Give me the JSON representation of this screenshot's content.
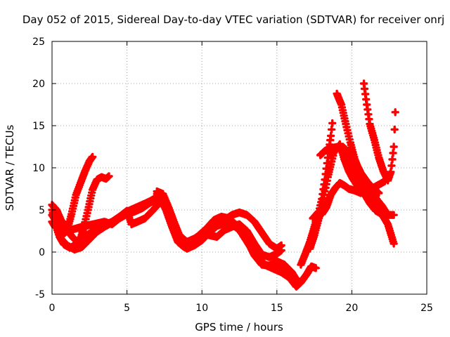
{
  "chart_data": {
    "type": "scatter",
    "title": "Day 052 of 2015, Sidereal Day-to-day VTEC variation (SDTVAR) for receiver onrj",
    "xlabel": "GPS time / hours",
    "ylabel": "SDTVAR / TECUs",
    "xlim": [
      0,
      25
    ],
    "ylim": [
      -5,
      25
    ],
    "x_ticks": [
      "0",
      "5",
      "10",
      "15",
      "20",
      "25"
    ],
    "y_ticks": [
      "-5",
      "0",
      "5",
      "10",
      "15",
      "20",
      "25"
    ],
    "grid": true,
    "marker": "+",
    "color": "#ff0000",
    "series": [
      {
        "points": [
          [
            0.0,
            5.6
          ],
          [
            0.3,
            5.0
          ],
          [
            0.6,
            3.8
          ],
          [
            1.0,
            2.6
          ],
          [
            1.4,
            1.7
          ],
          [
            1.8,
            1.0
          ],
          [
            2.1,
            2.8
          ],
          [
            2.4,
            5.0
          ],
          [
            2.7,
            7.4
          ],
          [
            3.0,
            8.6
          ],
          [
            3.3,
            8.9
          ],
          [
            3.6,
            8.7
          ],
          [
            3.8,
            9.0
          ]
        ]
      },
      {
        "points": [
          [
            0.0,
            3.6
          ],
          [
            0.2,
            3.0
          ],
          [
            0.5,
            2.7
          ],
          [
            0.8,
            2.2
          ],
          [
            1.0,
            2.5
          ],
          [
            1.3,
            4.5
          ],
          [
            1.6,
            6.8
          ],
          [
            1.9,
            8.2
          ],
          [
            2.2,
            9.6
          ],
          [
            2.5,
            10.8
          ],
          [
            2.7,
            11.3
          ]
        ]
      },
      {
        "points": [
          [
            0.0,
            5.0
          ],
          [
            0.3,
            3.0
          ],
          [
            0.6,
            1.6
          ],
          [
            1.0,
            0.8
          ],
          [
            1.5,
            0.3
          ],
          [
            2.0,
            0.6
          ],
          [
            2.5,
            1.5
          ],
          [
            3.0,
            2.4
          ],
          [
            3.5,
            3.0
          ],
          [
            4.0,
            3.5
          ],
          [
            4.5,
            4.2
          ],
          [
            5.0,
            4.8
          ],
          [
            5.5,
            5.2
          ],
          [
            6.0,
            5.6
          ],
          [
            6.5,
            6.0
          ],
          [
            7.0,
            6.5
          ],
          [
            7.3,
            6.6
          ]
        ]
      },
      {
        "points": [
          [
            0.0,
            4.4
          ],
          [
            0.4,
            3.3
          ],
          [
            0.8,
            2.8
          ],
          [
            1.2,
            2.6
          ],
          [
            1.6,
            2.8
          ],
          [
            2.0,
            3.0
          ],
          [
            2.5,
            3.2
          ],
          [
            3.0,
            3.4
          ],
          [
            3.5,
            3.6
          ],
          [
            4.0,
            3.3
          ],
          [
            4.5,
            4.0
          ],
          [
            5.0,
            4.5
          ],
          [
            5.5,
            4.8
          ],
          [
            6.0,
            5.2
          ],
          [
            6.5,
            5.8
          ],
          [
            7.0,
            6.3
          ],
          [
            7.2,
            6.7
          ]
        ]
      },
      {
        "points": [
          [
            0.2,
            3.4
          ],
          [
            0.5,
            1.8
          ],
          [
            0.8,
            0.9
          ],
          [
            1.2,
            0.5
          ],
          [
            1.6,
            0.9
          ],
          [
            2.0,
            1.6
          ],
          [
            2.5,
            2.2
          ],
          [
            3.0,
            2.7
          ],
          [
            3.5,
            3.2
          ],
          [
            4.0,
            3.6
          ],
          [
            4.5,
            4.2
          ],
          [
            5.0,
            4.9
          ],
          [
            5.3,
            3.3
          ],
          [
            5.7,
            3.6
          ],
          [
            6.2,
            4.0
          ],
          [
            6.7,
            4.9
          ],
          [
            7.0,
            5.5
          ],
          [
            7.3,
            6.0
          ]
        ]
      },
      {
        "points": [
          [
            7.0,
            7.2
          ],
          [
            7.4,
            6.9
          ],
          [
            7.8,
            5.2
          ],
          [
            8.2,
            3.3
          ],
          [
            8.6,
            1.5
          ],
          [
            9.0,
            0.9
          ],
          [
            9.5,
            1.3
          ],
          [
            10.0,
            1.8
          ],
          [
            10.5,
            2.6
          ],
          [
            11.0,
            3.2
          ],
          [
            11.5,
            3.8
          ],
          [
            12.0,
            4.4
          ],
          [
            12.5,
            4.7
          ],
          [
            13.0,
            4.4
          ],
          [
            13.5,
            3.6
          ],
          [
            14.0,
            2.3
          ],
          [
            14.5,
            1.0
          ],
          [
            15.0,
            0.4
          ],
          [
            15.3,
            0.8
          ]
        ]
      },
      {
        "points": [
          [
            7.0,
            6.9
          ],
          [
            7.4,
            6.5
          ],
          [
            7.8,
            4.7
          ],
          [
            8.2,
            2.5
          ],
          [
            8.6,
            0.9
          ],
          [
            9.0,
            0.4
          ],
          [
            9.5,
            0.8
          ],
          [
            10.0,
            1.4
          ],
          [
            10.5,
            2.3
          ],
          [
            11.0,
            3.1
          ],
          [
            11.5,
            3.4
          ],
          [
            12.0,
            3.3
          ],
          [
            12.5,
            2.6
          ],
          [
            13.0,
            1.4
          ],
          [
            13.5,
            -0.4
          ],
          [
            14.0,
            -1.5
          ],
          [
            14.5,
            -1.6
          ],
          [
            15.0,
            -1.1
          ],
          [
            15.5,
            -1.5
          ],
          [
            16.0,
            -2.4
          ],
          [
            16.3,
            -3.3
          ]
        ]
      },
      {
        "points": [
          [
            7.2,
            6.4
          ],
          [
            7.6,
            5.0
          ],
          [
            8.0,
            3.0
          ],
          [
            8.4,
            1.2
          ],
          [
            8.8,
            0.6
          ],
          [
            9.3,
            1.2
          ],
          [
            9.8,
            2.0
          ],
          [
            10.3,
            2.8
          ],
          [
            10.8,
            3.8
          ],
          [
            11.3,
            4.2
          ],
          [
            11.8,
            4.0
          ],
          [
            12.3,
            3.2
          ],
          [
            12.8,
            1.8
          ],
          [
            13.3,
            0.4
          ],
          [
            13.8,
            -0.8
          ],
          [
            14.3,
            -1.6
          ],
          [
            14.8,
            -2.0
          ],
          [
            15.3,
            -2.4
          ],
          [
            15.8,
            -3.0
          ],
          [
            16.2,
            -3.8
          ],
          [
            16.5,
            -3.5
          ]
        ]
      },
      {
        "points": [
          [
            8.5,
            2.0
          ],
          [
            9.0,
            1.2
          ],
          [
            9.5,
            1.6
          ],
          [
            10.0,
            2.2
          ],
          [
            10.5,
            2.0
          ],
          [
            11.0,
            1.8
          ],
          [
            11.5,
            2.6
          ],
          [
            12.0,
            3.0
          ],
          [
            12.5,
            3.3
          ],
          [
            13.0,
            2.5
          ],
          [
            13.5,
            1.0
          ],
          [
            14.0,
            -0.3
          ],
          [
            14.5,
            -0.6
          ],
          [
            15.0,
            -0.2
          ],
          [
            15.3,
            0.2
          ]
        ]
      },
      {
        "points": [
          [
            15.0,
            -1.8
          ],
          [
            15.5,
            -2.4
          ],
          [
            16.0,
            -3.4
          ],
          [
            16.3,
            -4.1
          ],
          [
            16.6,
            -3.6
          ],
          [
            17.0,
            -2.6
          ],
          [
            17.3,
            -1.7
          ],
          [
            17.6,
            -1.9
          ]
        ]
      },
      {
        "points": [
          [
            16.6,
            -1.5
          ],
          [
            16.9,
            -0.2
          ],
          [
            17.2,
            1.2
          ],
          [
            17.5,
            3.0
          ],
          [
            17.8,
            4.8
          ],
          [
            18.0,
            6.3
          ],
          [
            18.2,
            8.6
          ],
          [
            18.4,
            11.2
          ],
          [
            18.6,
            13.8
          ],
          [
            18.7,
            15.3
          ]
        ]
      },
      {
        "points": [
          [
            17.2,
            0.4
          ],
          [
            17.5,
            2.0
          ],
          [
            17.8,
            4.0
          ],
          [
            18.0,
            5.6
          ],
          [
            18.2,
            7.2
          ],
          [
            18.4,
            8.9
          ],
          [
            18.6,
            10.4
          ],
          [
            18.8,
            11.8
          ]
        ]
      },
      {
        "points": [
          [
            17.4,
            4.0
          ],
          [
            17.8,
            4.8
          ],
          [
            18.0,
            4.5
          ],
          [
            18.3,
            5.3
          ],
          [
            18.6,
            6.8
          ],
          [
            18.9,
            7.6
          ],
          [
            19.2,
            8.2
          ],
          [
            19.5,
            7.9
          ],
          [
            19.8,
            7.5
          ],
          [
            20.2,
            7.3
          ],
          [
            20.6,
            7.0
          ],
          [
            21.0,
            7.3
          ],
          [
            21.4,
            7.6
          ],
          [
            21.8,
            8.0
          ],
          [
            22.2,
            8.4
          ]
        ]
      },
      {
        "points": [
          [
            17.9,
            11.5
          ],
          [
            18.2,
            12.0
          ],
          [
            18.5,
            12.3
          ],
          [
            18.8,
            12.4
          ],
          [
            19.1,
            12.5
          ],
          [
            19.4,
            12.5
          ],
          [
            19.7,
            12.0
          ],
          [
            20.0,
            11.6
          ],
          [
            20.3,
            10.5
          ],
          [
            20.6,
            9.4
          ],
          [
            21.0,
            8.4
          ],
          [
            21.4,
            7.6
          ],
          [
            21.8,
            7.0
          ]
        ]
      },
      {
        "points": [
          [
            18.9,
            12.0
          ],
          [
            19.2,
            12.8
          ],
          [
            19.5,
            11.0
          ],
          [
            19.8,
            9.6
          ],
          [
            20.1,
            8.6
          ],
          [
            20.4,
            7.8
          ],
          [
            20.8,
            7.0
          ],
          [
            21.2,
            5.8
          ],
          [
            21.6,
            4.9
          ],
          [
            22.0,
            4.5
          ],
          [
            22.4,
            3.3
          ],
          [
            22.8,
            1.0
          ]
        ]
      },
      {
        "points": [
          [
            19.0,
            18.8
          ],
          [
            19.3,
            17.5
          ],
          [
            19.6,
            15.2
          ],
          [
            19.9,
            13.0
          ],
          [
            20.2,
            11.0
          ],
          [
            20.5,
            9.5
          ],
          [
            20.8,
            8.0
          ],
          [
            21.2,
            6.8
          ],
          [
            21.6,
            5.3
          ],
          [
            22.0,
            4.5
          ],
          [
            22.3,
            4.3
          ]
        ]
      },
      {
        "points": [
          [
            19.5,
            12.3
          ],
          [
            19.8,
            10.8
          ],
          [
            20.1,
            9.6
          ],
          [
            20.4,
            8.7
          ],
          [
            20.7,
            8.0
          ],
          [
            21.0,
            7.4
          ],
          [
            21.3,
            7.2
          ],
          [
            21.6,
            6.4
          ],
          [
            22.0,
            5.5
          ],
          [
            22.4,
            4.4
          ],
          [
            22.8,
            4.4
          ]
        ]
      },
      {
        "points": [
          [
            20.8,
            20.0
          ],
          [
            21.0,
            17.5
          ],
          [
            21.2,
            15.2
          ],
          [
            21.5,
            13.3
          ],
          [
            21.8,
            11.2
          ],
          [
            22.1,
            9.6
          ],
          [
            22.4,
            8.5
          ],
          [
            22.6,
            9.5
          ],
          [
            22.8,
            12.5
          ],
          [
            22.9,
            16.6
          ]
        ]
      }
    ]
  }
}
